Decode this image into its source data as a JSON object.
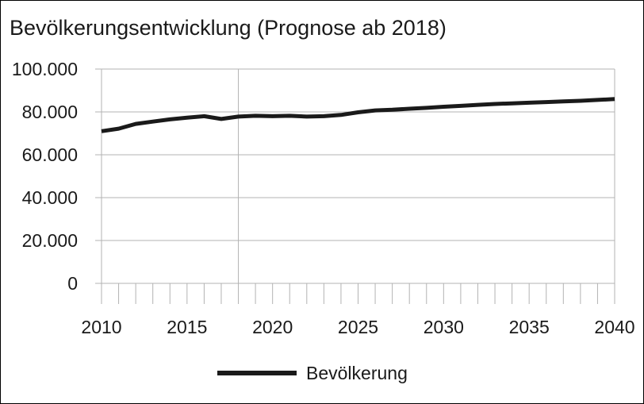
{
  "chart_data": {
    "type": "line",
    "title": "Bevölkerungsentwicklung (Prognose ab 2018)",
    "xlabel": "",
    "ylabel": "",
    "xlim": [
      2010,
      2040
    ],
    "ylim": [
      0,
      100000
    ],
    "x_ticks": [
      2010,
      2015,
      2020,
      2025,
      2030,
      2035,
      2040
    ],
    "x_tick_labels": [
      "2010",
      "2015",
      "2020",
      "2025",
      "2030",
      "2035",
      "2040"
    ],
    "y_ticks": [
      0,
      20000,
      40000,
      60000,
      80000,
      100000
    ],
    "y_tick_labels": [
      "0",
      "20.000",
      "40.000",
      "60.000",
      "80.000",
      "100.000"
    ],
    "forecast_start": 2018,
    "grid": "horizontal",
    "legend_position": "bottom",
    "series": [
      {
        "name": "Bevölkerung",
        "color": "#1a1a1a",
        "x": [
          2010,
          2011,
          2012,
          2013,
          2014,
          2015,
          2016,
          2017,
          2018,
          2019,
          2020,
          2021,
          2022,
          2023,
          2024,
          2025,
          2026,
          2027,
          2028,
          2029,
          2030,
          2031,
          2032,
          2033,
          2034,
          2035,
          2036,
          2037,
          2038,
          2039,
          2040
        ],
        "values": [
          71000,
          72200,
          74400,
          75500,
          76500,
          77300,
          78000,
          76700,
          77800,
          78200,
          78000,
          78200,
          77800,
          78000,
          78600,
          79800,
          80700,
          81000,
          81500,
          81900,
          82400,
          82800,
          83300,
          83700,
          84000,
          84300,
          84600,
          84900,
          85200,
          85600,
          86000
        ]
      }
    ]
  },
  "legend": {
    "label": "Bevölkerung"
  }
}
